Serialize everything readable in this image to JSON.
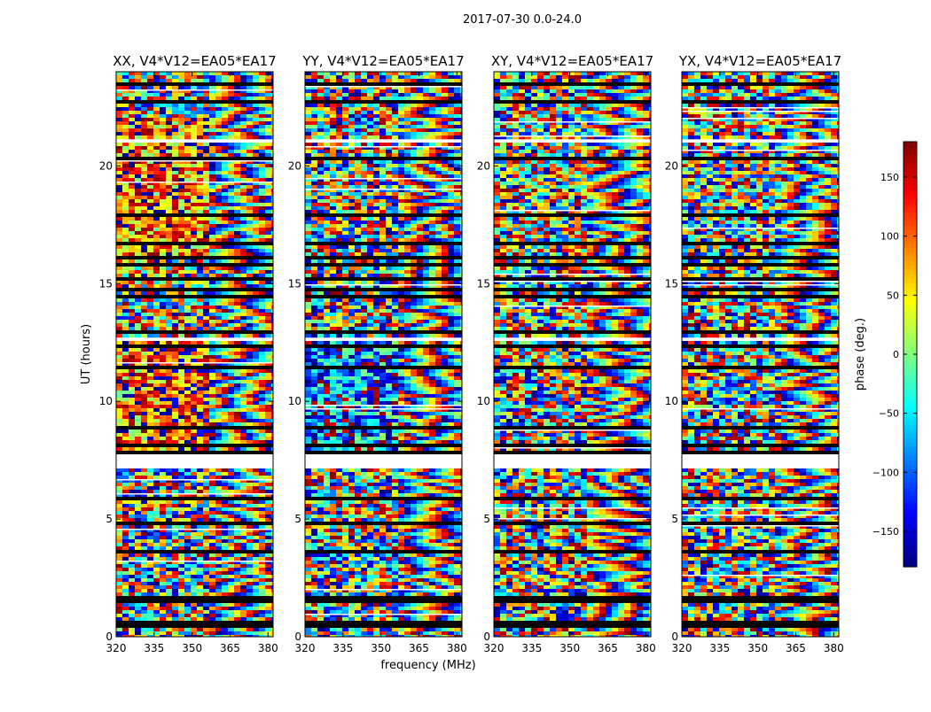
{
  "figure": {
    "suptitle": "2017-07-30 0.0-24.0"
  },
  "chart_data": {
    "type": "heatmap",
    "xlabel": "frequency (MHz)",
    "ylabel": "UT (hours)",
    "xlim": [
      320,
      382
    ],
    "ylim": [
      0,
      24
    ],
    "x_ticks": [
      320,
      335,
      350,
      365,
      380
    ],
    "y_ticks": [
      0,
      5,
      10,
      15,
      20
    ],
    "colorbar": {
      "label": "phase (deg.)",
      "range": [
        -180,
        180
      ],
      "ticks": [
        150,
        100,
        50,
        0,
        -50,
        -100,
        -150
      ],
      "colormap": "jet"
    },
    "panels": [
      {
        "title": "XX, V4*V12=EA05*EA17",
        "pol": "XX"
      },
      {
        "title": "YY, V4*V12=EA05*EA17",
        "pol": "YY"
      },
      {
        "title": "XY, V4*V12=EA05*EA17",
        "pol": "XY"
      },
      {
        "title": "YX, V4*V12=EA05*EA17",
        "pol": "YX"
      }
    ],
    "gaps_hours": [
      [
        0.05,
        0.15
      ],
      [
        7.2,
        7.7
      ],
      [
        12.6,
        12.75
      ],
      [
        20.95,
        21.15
      ],
      [
        23.65,
        23.72
      ]
    ],
    "legend": "none",
    "grid": false
  }
}
